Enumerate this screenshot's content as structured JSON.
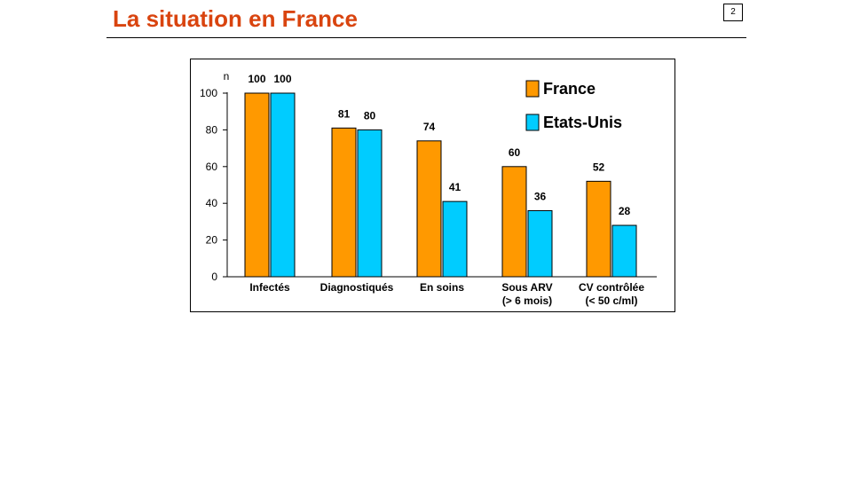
{
  "header": {
    "title": "La situation en France",
    "page_number": "2"
  },
  "colors": {
    "title": "#d9440f",
    "france": "#ff9900",
    "usa": "#00ccff"
  },
  "chart_data": {
    "type": "bar",
    "title": "",
    "xlabel": "",
    "ylabel": "n",
    "ylim": [
      0,
      100
    ],
    "yticks": [
      0,
      20,
      40,
      60,
      80,
      100
    ],
    "categories": [
      [
        "Infectés"
      ],
      [
        "Diagnostiqués"
      ],
      [
        "En soins"
      ],
      [
        "Sous ARV",
        "(> 6 mois)"
      ],
      [
        "CV contrôlée",
        "(< 50 c/ml)"
      ]
    ],
    "series": [
      {
        "name": "France",
        "color": "#ff9900",
        "values": [
          100,
          81,
          74,
          60,
          52
        ]
      },
      {
        "name": "Etats-Unis",
        "color": "#00ccff",
        "values": [
          100,
          80,
          41,
          36,
          28
        ]
      }
    ],
    "legend": "top-right",
    "grid": false
  }
}
